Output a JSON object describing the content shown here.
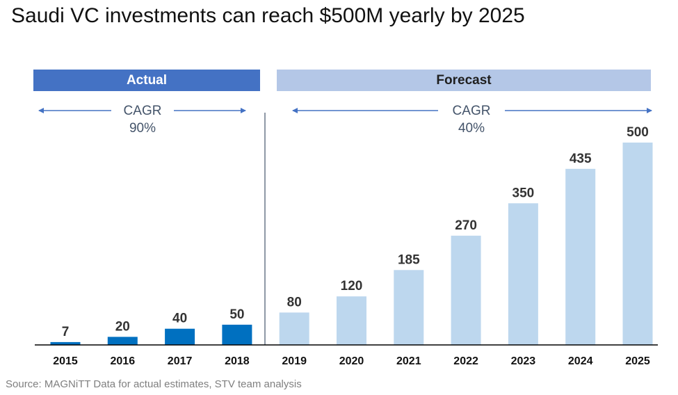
{
  "title": "Saudi VC investments can reach $500M yearly by 2025",
  "banners": {
    "actual": "Actual",
    "forecast": "Forecast"
  },
  "cagr": {
    "actual": {
      "label": "CAGR",
      "value": "90%"
    },
    "forecast": {
      "label": "CAGR",
      "value": "40%"
    }
  },
  "source": "Source: MAGNiTT Data for actual estimates, STV team analysis",
  "colors": {
    "actual_bar": "#0070c0",
    "forecast_bar": "#bdd7ee",
    "actual_banner": "#4472c4",
    "forecast_banner": "#b4c7e7",
    "arrow": "#4472c4",
    "divider": "#44546a",
    "baseline": "#000000"
  },
  "chart_data": {
    "type": "bar",
    "title": "Saudi VC investments can reach $500M yearly by 2025",
    "categories": [
      "2015",
      "2016",
      "2017",
      "2018",
      "2019",
      "2020",
      "2021",
      "2022",
      "2023",
      "2024",
      "2025"
    ],
    "values": [
      7,
      20,
      40,
      50,
      80,
      120,
      185,
      270,
      350,
      435,
      500
    ],
    "groups": [
      "actual",
      "actual",
      "actual",
      "actual",
      "forecast",
      "forecast",
      "forecast",
      "forecast",
      "forecast",
      "forecast",
      "forecast"
    ],
    "data_labels": [
      "7",
      "20",
      "40",
      "50",
      "80",
      "120",
      "185",
      "270",
      "350",
      "435",
      "500"
    ],
    "ylim": [
      0,
      500
    ],
    "grid": false,
    "legend": "none",
    "xlabel": "",
    "ylabel": ""
  }
}
